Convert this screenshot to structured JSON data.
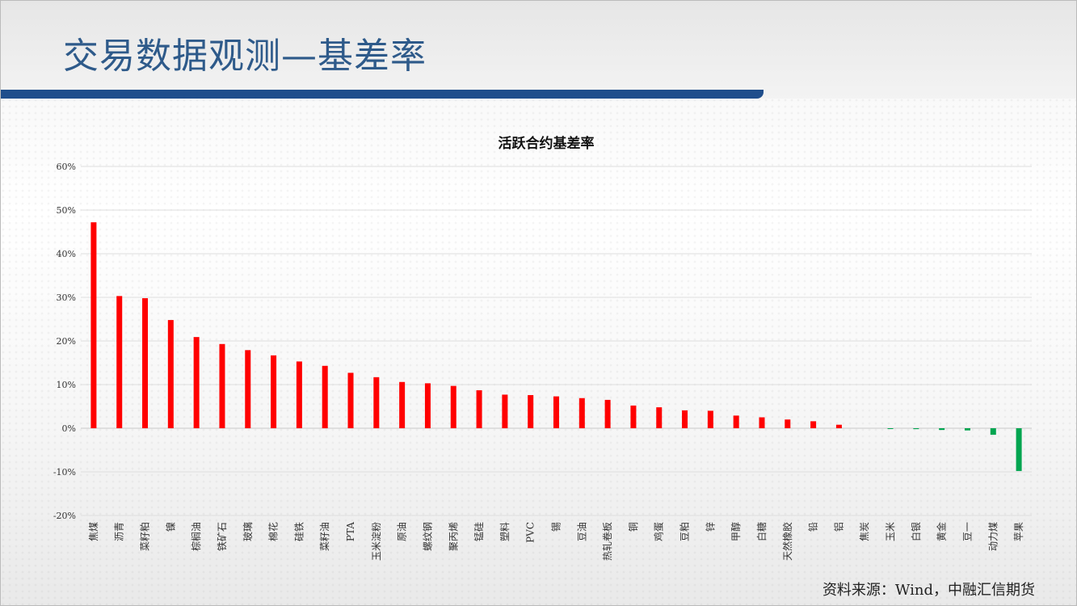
{
  "page": {
    "title": "交易数据观测—基差率",
    "source": "资料来源：Wind，中融汇信期货"
  },
  "colors": {
    "positive": "#ff0000",
    "negative": "#00a550",
    "title": "#2e5a8a",
    "underline": "#1f4e8c"
  },
  "chart_data": {
    "type": "bar",
    "title": "活跃合约基差率",
    "xlabel": "",
    "ylabel": "",
    "ylim": [
      -20,
      60
    ],
    "yticks": [
      -20,
      -10,
      0,
      10,
      20,
      30,
      40,
      50,
      60
    ],
    "ytick_labels": [
      "-20%",
      "-10%",
      "0%",
      "10%",
      "20%",
      "30%",
      "40%",
      "50%",
      "60%"
    ],
    "grid": true,
    "legend": "none",
    "categories": [
      "焦煤",
      "沥青",
      "菜籽粕",
      "镍",
      "棕榈油",
      "铁矿石",
      "玻璃",
      "棉花",
      "硅铁",
      "菜籽油",
      "PTA",
      "玉米淀粉",
      "原油",
      "螺纹钢",
      "聚丙烯",
      "锰硅",
      "塑料",
      "PVC",
      "锡",
      "豆油",
      "热轧卷板",
      "铜",
      "鸡蛋",
      "豆粕",
      "锌",
      "甲醇",
      "白糖",
      "天然橡胶",
      "铅",
      "铝",
      "焦炭",
      "玉米",
      "白银",
      "黄金",
      "豆一",
      "动力煤",
      "苹果"
    ],
    "values": [
      47.2,
      30.3,
      29.8,
      24.8,
      20.9,
      19.3,
      17.9,
      16.7,
      15.3,
      14.3,
      12.7,
      11.7,
      10.6,
      10.3,
      9.7,
      8.7,
      7.7,
      7.6,
      7.3,
      6.9,
      6.5,
      5.2,
      4.8,
      4.1,
      4.0,
      2.9,
      2.5,
      2.0,
      1.6,
      0.8,
      0.0,
      -0.1,
      -0.2,
      -0.4,
      -0.5,
      -1.5,
      -9.8
    ]
  }
}
